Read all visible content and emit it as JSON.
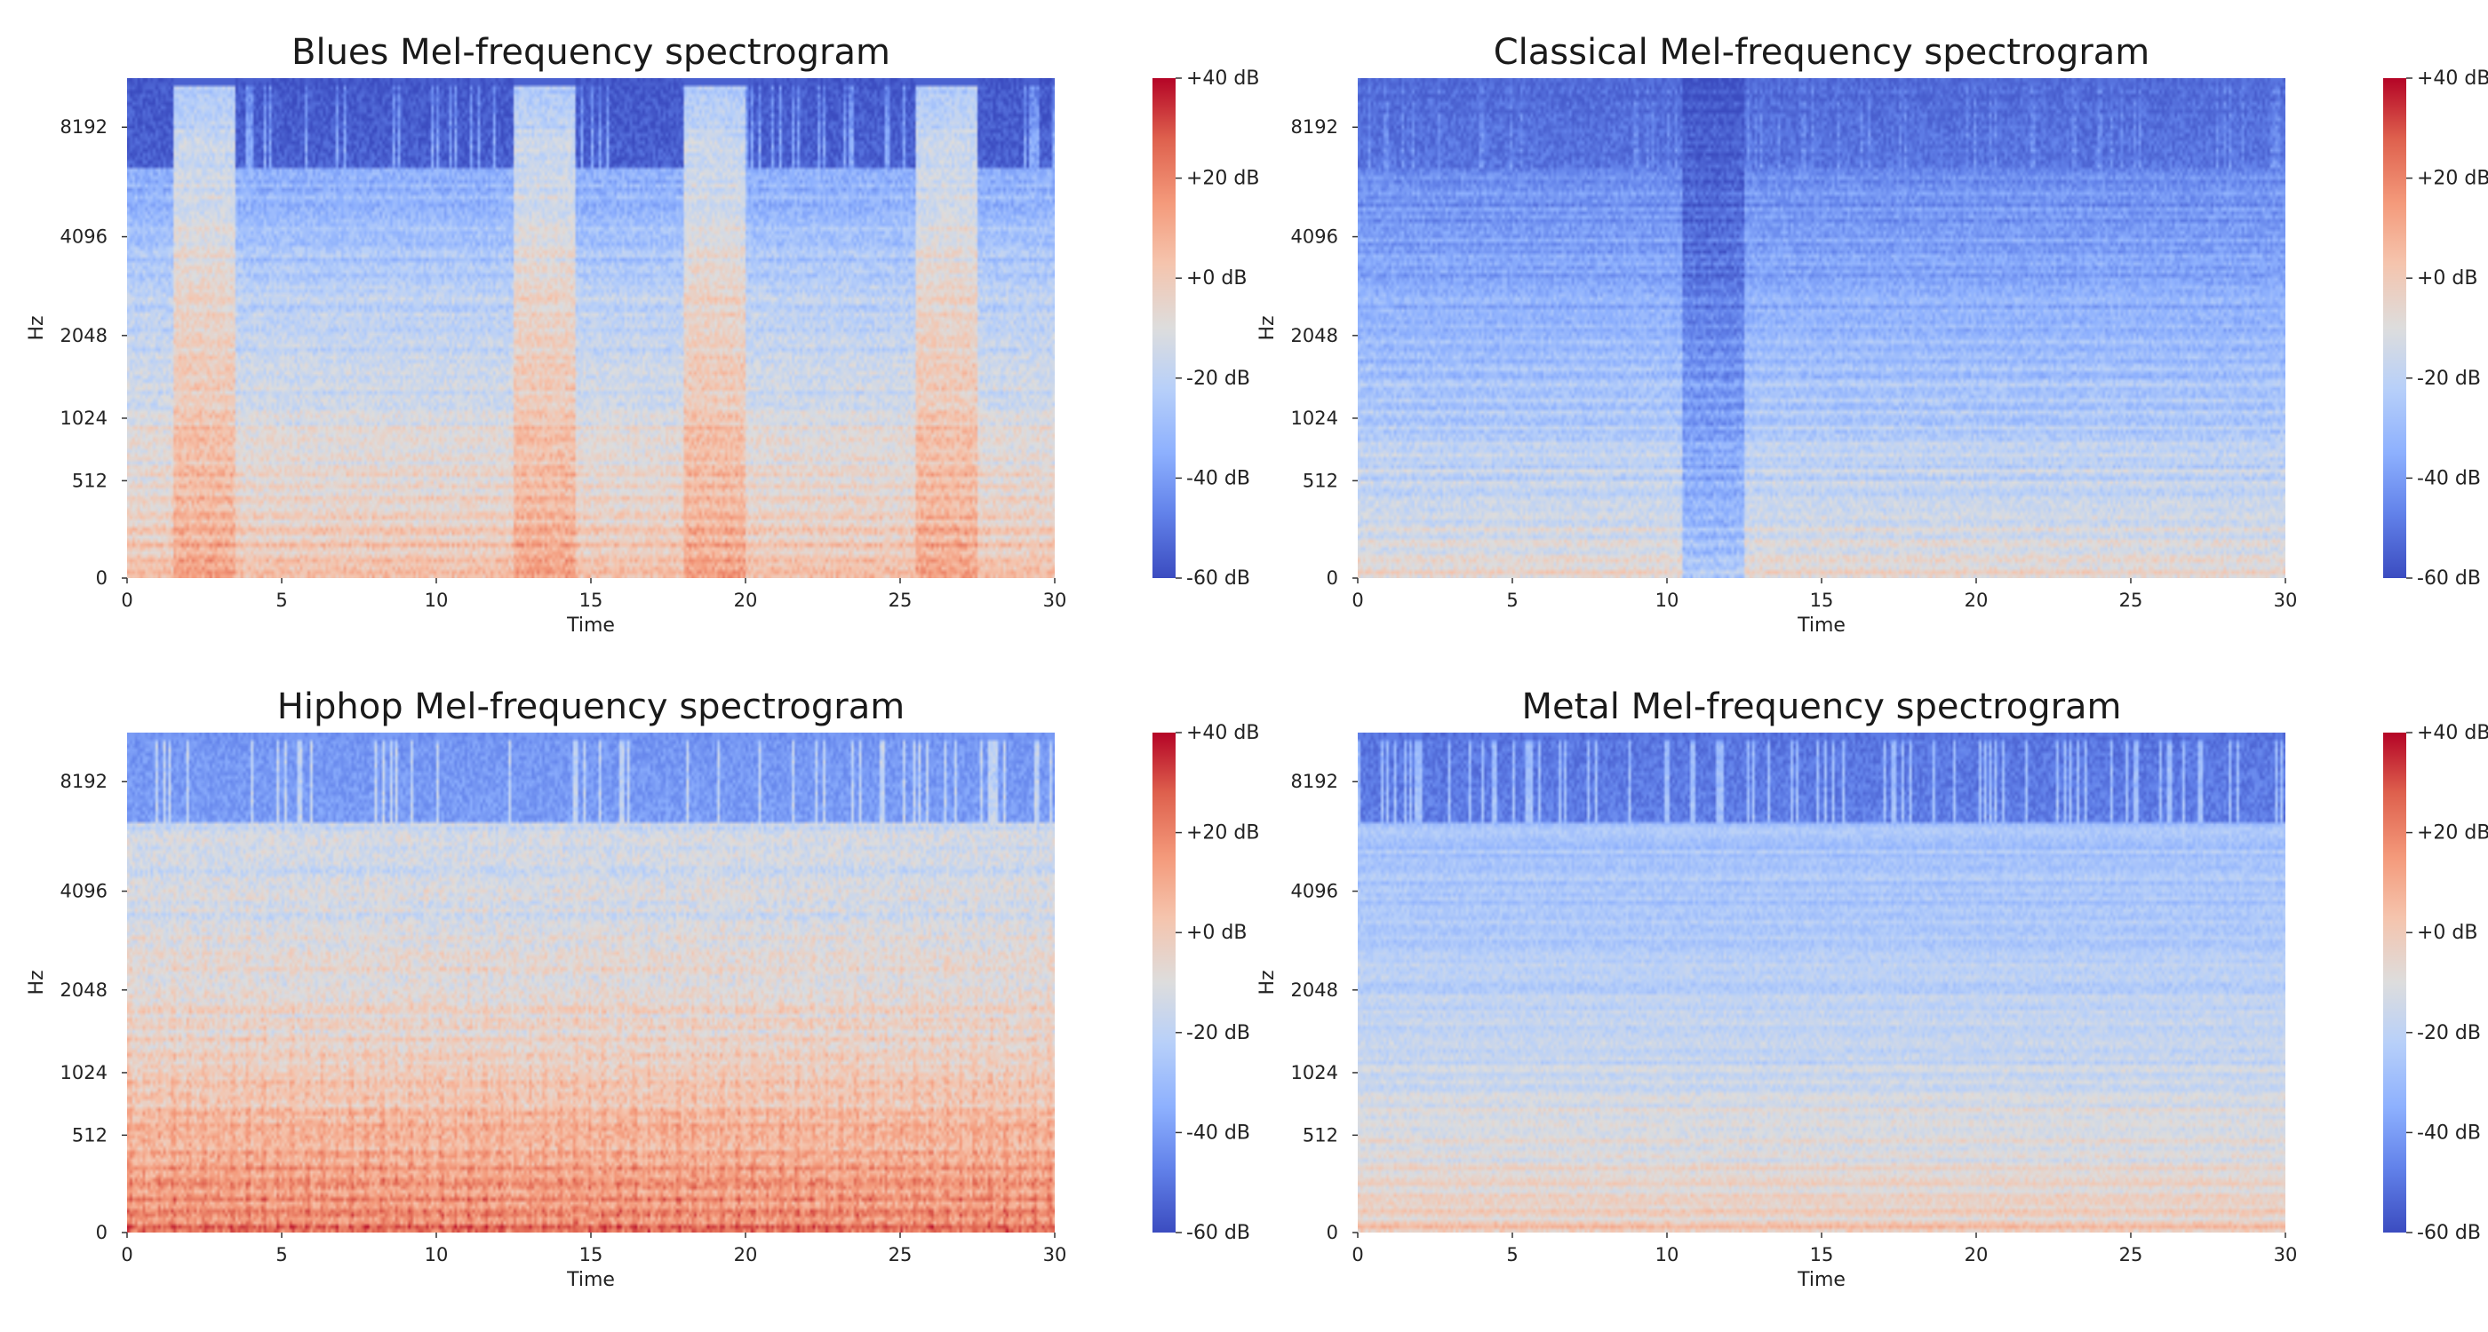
{
  "colormap": {
    "name": "coolwarm",
    "low": "#3b4cc0",
    "mid": "#dddddd",
    "high": "#b40426"
  },
  "chart_data": [
    {
      "type": "heatmap",
      "title": "Blues Mel-frequency spectrogram",
      "xlabel": "Time",
      "ylabel": "Hz",
      "xlim": [
        0,
        30
      ],
      "x_ticks": [
        "0",
        "5",
        "10",
        "15",
        "20",
        "25",
        "30"
      ],
      "y_ticks": [
        "0",
        "512",
        "1024",
        "2048",
        "4096",
        "8192"
      ],
      "colorbar": {
        "label_ticks": [
          "+40 dB",
          "+20 dB",
          "+0 dB",
          "-20 dB",
          "-40 dB",
          "-60 dB"
        ],
        "range_db": [
          -60,
          40
        ]
      },
      "profile": {
        "base_db": -8,
        "high_freq_drop_db": 38,
        "low_freq_boost_db": 10,
        "noise_db": 12,
        "bursts_s": [
          [
            1.5,
            3.5
          ],
          [
            12.5,
            14.5
          ],
          [
            18,
            20
          ],
          [
            25.5,
            27.5
          ]
        ],
        "burst_boost_db": 22,
        "quiet_top_db": -55
      }
    },
    {
      "type": "heatmap",
      "title": "Classical Mel-frequency spectrogram",
      "xlabel": "Time",
      "ylabel": "Hz",
      "xlim": [
        0,
        30
      ],
      "x_ticks": [
        "0",
        "5",
        "10",
        "15",
        "20",
        "25",
        "30"
      ],
      "y_ticks": [
        "0",
        "512",
        "1024",
        "2048",
        "4096",
        "8192"
      ],
      "colorbar": {
        "label_ticks": [
          "+40 dB",
          "+20 dB",
          "+0 dB",
          "-20 dB",
          "-40 dB",
          "-60 dB"
        ],
        "range_db": [
          -60,
          40
        ]
      },
      "profile": {
        "base_db": -28,
        "high_freq_drop_db": 22,
        "low_freq_boost_db": 22,
        "noise_db": 10,
        "bursts_s": [],
        "burst_boost_db": 0,
        "dip_s": [
          10.5,
          12.5
        ],
        "dip_db": -18,
        "quiet_top_db": -50
      }
    },
    {
      "type": "heatmap",
      "title": "Hiphop Mel-frequency spectrogram",
      "xlabel": "Time",
      "ylabel": "Hz",
      "xlim": [
        0,
        30
      ],
      "x_ticks": [
        "0",
        "5",
        "10",
        "15",
        "20",
        "25",
        "30"
      ],
      "y_ticks": [
        "0",
        "512",
        "1024",
        "2048",
        "4096",
        "8192"
      ],
      "colorbar": {
        "label_ticks": [
          "+40 dB",
          "+20 dB",
          "+0 dB",
          "-20 dB",
          "-40 dB",
          "-60 dB"
        ],
        "range_db": [
          -60,
          40
        ]
      },
      "profile": {
        "base_db": -8,
        "high_freq_drop_db": 12,
        "low_freq_boost_db": 28,
        "noise_db": 14,
        "bursts_s": [],
        "burst_boost_db": 0,
        "beat_period_s": 0.48,
        "quiet_top_db": -40
      }
    },
    {
      "type": "heatmap",
      "title": "Metal Mel-frequency spectrogram",
      "xlabel": "Time",
      "ylabel": "Hz",
      "xlim": [
        0,
        30
      ],
      "x_ticks": [
        "0",
        "5",
        "10",
        "15",
        "20",
        "25",
        "30"
      ],
      "y_ticks": [
        "0",
        "512",
        "1024",
        "2048",
        "4096",
        "8192"
      ],
      "colorbar": {
        "label_ticks": [
          "+40 dB",
          "+20 dB",
          "+0 dB",
          "-20 dB",
          "-40 dB",
          "-60 dB"
        ],
        "range_db": [
          -60,
          40
        ]
      },
      "profile": {
        "base_db": -22,
        "high_freq_drop_db": 8,
        "low_freq_boost_db": 22,
        "noise_db": 8,
        "bursts_s": [],
        "burst_boost_db": 0,
        "quiet_top_db": -48
      }
    }
  ]
}
